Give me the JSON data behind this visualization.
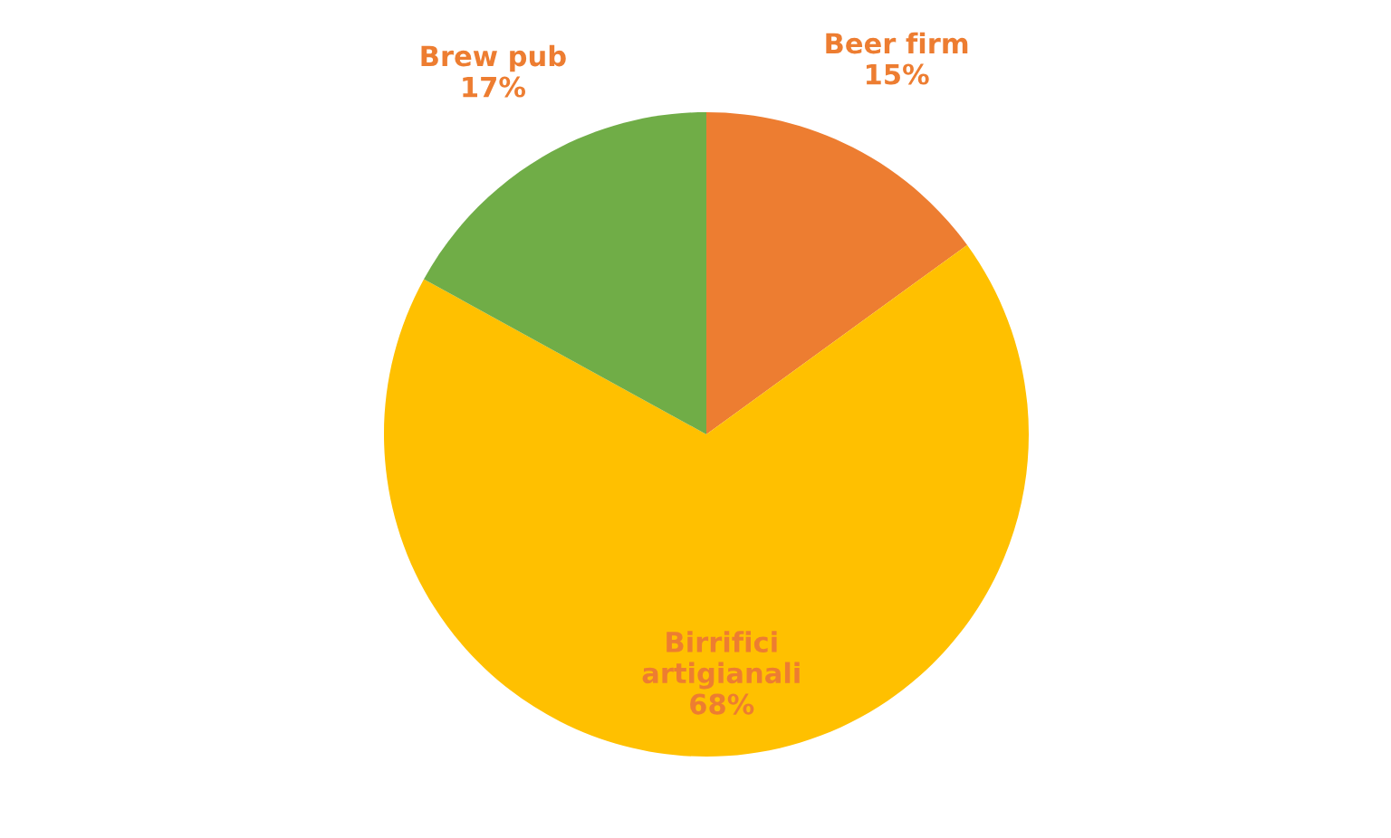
{
  "chart_data": {
    "type": "pie",
    "categories": [
      "Beer firm",
      "Birrifici\nartigianali",
      "Brew pub"
    ],
    "values": [
      15,
      68,
      17
    ],
    "value_labels": [
      "15%",
      "68%",
      "17%"
    ],
    "colors": [
      "#ed7d31",
      "#ffc000",
      "#70ad47"
    ],
    "legend": false
  }
}
